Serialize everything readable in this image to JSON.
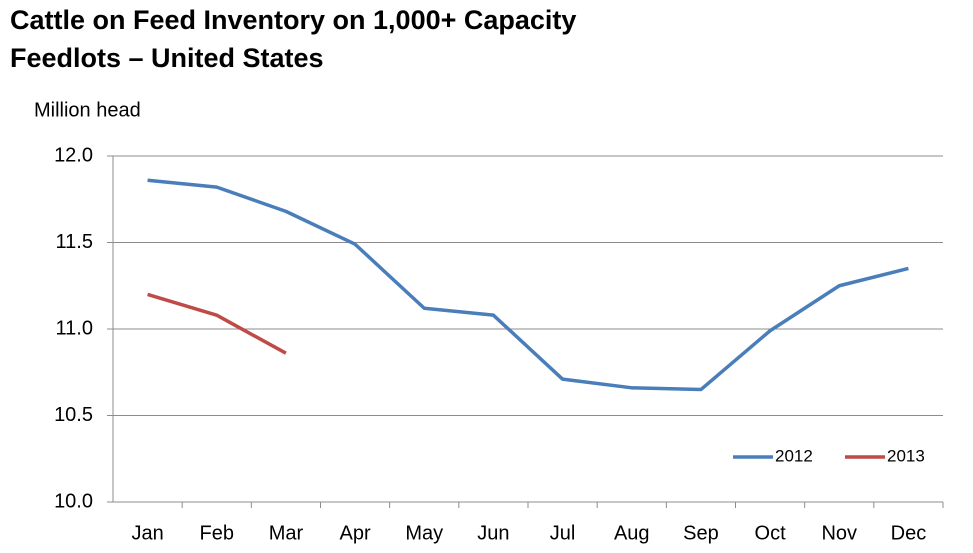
{
  "chart_data": {
    "type": "line",
    "title": [
      "Cattle on Feed Inventory on 1,000+ Capacity",
      "Feedlots – United States"
    ],
    "y_label": "Million head",
    "categories": [
      "Jan",
      "Feb",
      "Mar",
      "Apr",
      "May",
      "Jun",
      "Jul",
      "Aug",
      "Sep",
      "Oct",
      "Nov",
      "Dec"
    ],
    "series": [
      {
        "name": "2012",
        "color": "#4a7ebb",
        "values": [
          11.86,
          11.82,
          11.68,
          11.49,
          11.12,
          11.08,
          10.71,
          10.66,
          10.65,
          10.99,
          11.25,
          11.35
        ]
      },
      {
        "name": "2013",
        "color": "#be4b48",
        "values": [
          11.2,
          11.08,
          10.86,
          null,
          null,
          null,
          null,
          null,
          null,
          null,
          null,
          null
        ]
      }
    ],
    "ylim": [
      10,
      12
    ],
    "yticks": [
      {
        "value": 10,
        "label": "10.0"
      },
      {
        "value": 10.5,
        "label": "10.5"
      },
      {
        "value": 11,
        "label": "11.0"
      },
      {
        "value": 11.5,
        "label": "11.5"
      },
      {
        "value": 12,
        "label": "12.0"
      }
    ],
    "grid": true,
    "legend": "lower right"
  }
}
